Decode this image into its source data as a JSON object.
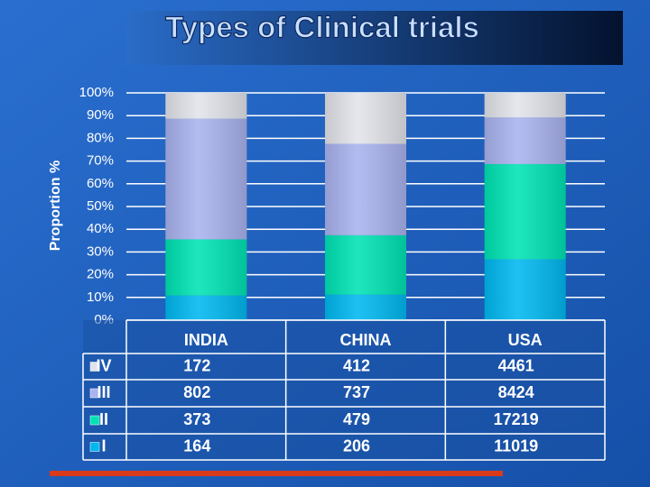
{
  "chart_data": {
    "type": "bar",
    "stacked": "percent",
    "title": "Types of Clinical trials",
    "y_label": "Proportion %",
    "categories": [
      "INDIA",
      "CHINA",
      "USA"
    ],
    "series": [
      {
        "name": "IV",
        "color": "#e2e4ea",
        "values": [
          172,
          412,
          4461
        ]
      },
      {
        "name": "III",
        "color": "#a9b3ee",
        "values": [
          802,
          737,
          8424
        ]
      },
      {
        "name": "II",
        "color": "#00e3b4",
        "values": [
          373,
          479,
          17219
        ]
      },
      {
        "name": "I",
        "color": "#00b8f0",
        "values": [
          164,
          206,
          11019
        ]
      }
    ],
    "ylim": [
      0,
      100
    ],
    "yticks": [
      {
        "value": 0,
        "label": "0%"
      },
      {
        "value": 10,
        "label": "10%"
      },
      {
        "value": 20,
        "label": "20%"
      },
      {
        "value": 30,
        "label": "30%"
      },
      {
        "value": 40,
        "label": "40%"
      },
      {
        "value": 50,
        "label": "50%"
      },
      {
        "value": 60,
        "label": "60%"
      },
      {
        "value": 70,
        "label": "70%"
      },
      {
        "value": 80,
        "label": "80%"
      },
      {
        "value": 90,
        "label": "90%"
      },
      {
        "value": 100,
        "label": "100%"
      }
    ],
    "grid": true
  }
}
